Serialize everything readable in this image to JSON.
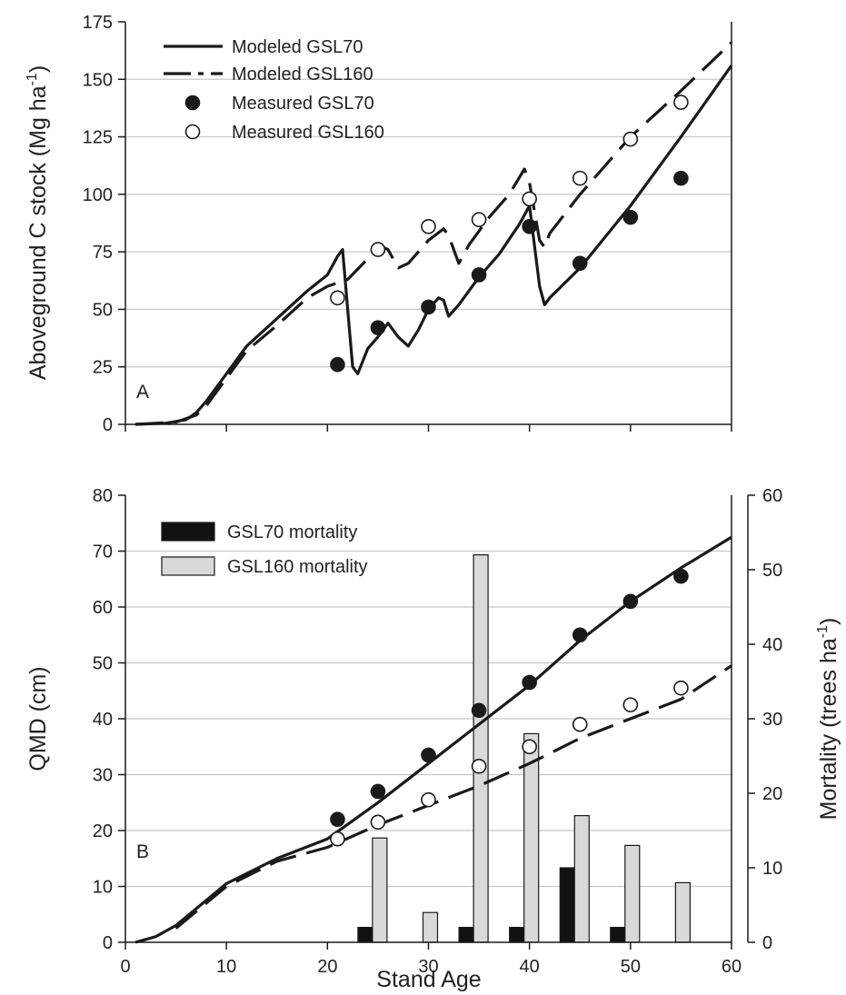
{
  "chart_data": [
    {
      "panel": "A",
      "type": "line",
      "ylabel_main": "Aboveground C stock (Mg ha",
      "ylabel_sup": "-1",
      "ylabel_close": ")",
      "xlim": [
        0,
        60
      ],
      "ylim": [
        0,
        175
      ],
      "x_ticks": [
        0,
        10,
        20,
        30,
        40,
        50,
        60
      ],
      "y_ticks": [
        0,
        25,
        50,
        75,
        100,
        125,
        150,
        175
      ],
      "grid": "horizontal",
      "legend_position": "top-left",
      "series": [
        {
          "name": "Modeled GSL70",
          "style": "solid",
          "points": [
            [
              1,
              0
            ],
            [
              4,
              0.5
            ],
            [
              6,
              2
            ],
            [
              7,
              5
            ],
            [
              8,
              10
            ],
            [
              10,
              22
            ],
            [
              12,
              34
            ],
            [
              15,
              46
            ],
            [
              18,
              58
            ],
            [
              20,
              65
            ],
            [
              21,
              73
            ],
            [
              21.5,
              76
            ],
            [
              22,
              50
            ],
            [
              22.5,
              25
            ],
            [
              23,
              22
            ],
            [
              24,
              33
            ],
            [
              25,
              38
            ],
            [
              26,
              44
            ],
            [
              27,
              38
            ],
            [
              28,
              34
            ],
            [
              29,
              41
            ],
            [
              30,
              50
            ],
            [
              31,
              55
            ],
            [
              31.5,
              54
            ],
            [
              32,
              47
            ],
            [
              33,
              52
            ],
            [
              35,
              64
            ],
            [
              37,
              74
            ],
            [
              39,
              87
            ],
            [
              40,
              95
            ],
            [
              41,
              60
            ],
            [
              41.5,
              52
            ],
            [
              42,
              55
            ],
            [
              45,
              68
            ],
            [
              50,
              95
            ],
            [
              55,
              125
            ],
            [
              60,
              156
            ]
          ]
        },
        {
          "name": "Modeled GSL160",
          "style": "dashed",
          "points": [
            [
              1,
              0
            ],
            [
              5,
              1
            ],
            [
              7,
              4
            ],
            [
              8,
              8
            ],
            [
              10,
              20
            ],
            [
              12,
              32
            ],
            [
              15,
              43
            ],
            [
              18,
              55
            ],
            [
              20,
              60
            ],
            [
              22,
              63
            ],
            [
              24,
              72
            ],
            [
              25.5,
              77
            ],
            [
              26,
              76
            ],
            [
              27,
              68
            ],
            [
              28,
              70
            ],
            [
              30,
              80
            ],
            [
              31.5,
              85
            ],
            [
              32,
              82
            ],
            [
              33,
              70
            ],
            [
              34,
              78
            ],
            [
              36,
              90
            ],
            [
              38,
              100
            ],
            [
              39.5,
              111
            ],
            [
              40,
              105
            ],
            [
              41,
              80
            ],
            [
              41.5,
              77
            ],
            [
              42,
              83
            ],
            [
              45,
              100
            ],
            [
              50,
              125
            ],
            [
              55,
              145
            ],
            [
              60,
              166
            ]
          ]
        },
        {
          "name": "Measured GSL70",
          "style": "filled-circle",
          "points": [
            [
              21,
              26
            ],
            [
              25,
              42
            ],
            [
              30,
              51
            ],
            [
              35,
              65
            ],
            [
              40,
              86
            ],
            [
              45,
              70
            ],
            [
              50,
              90
            ],
            [
              55,
              107
            ]
          ]
        },
        {
          "name": "Measured GSL160",
          "style": "open-circle",
          "points": [
            [
              21,
              55
            ],
            [
              25,
              76
            ],
            [
              30,
              86
            ],
            [
              35,
              89
            ],
            [
              40,
              98
            ],
            [
              45,
              107
            ],
            [
              50,
              124
            ],
            [
              55,
              140
            ]
          ]
        }
      ],
      "colors": {
        "line": "#1a1a1a",
        "grid": "#c8c8c8",
        "open_fill": "#ffffff"
      }
    },
    {
      "panel": "B",
      "type": "line+bar",
      "ylabel": "QMD (cm)",
      "y2label_main": "Mortality (trees ha",
      "y2label_sup": "-1",
      "y2label_close": ")",
      "xlabel": "Stand Age",
      "xlim": [
        0,
        60
      ],
      "ylim": [
        0,
        80
      ],
      "y2lim": [
        0,
        60
      ],
      "x_ticks": [
        0,
        10,
        20,
        30,
        40,
        50,
        60
      ],
      "y_ticks": [
        0,
        10,
        20,
        30,
        40,
        50,
        60,
        70,
        80
      ],
      "y2_ticks": [
        0,
        10,
        20,
        30,
        40,
        50,
        60
      ],
      "grid": "horizontal",
      "legend_position": "top-left",
      "bars": [
        {
          "name": "GSL70 mortality",
          "color": "#111111",
          "x": [
            25,
            35,
            40,
            45,
            50
          ],
          "values": [
            2,
            2,
            2,
            10,
            2
          ]
        },
        {
          "name": "GSL160 mortality",
          "color": "#d9d9d9",
          "x": [
            25,
            30,
            35,
            40,
            45,
            50,
            55
          ],
          "values": [
            14,
            4,
            52,
            28,
            17,
            13,
            8
          ]
        }
      ],
      "series": [
        {
          "style": "solid",
          "points": [
            [
              1,
              0
            ],
            [
              3,
              1
            ],
            [
              5,
              3
            ],
            [
              7,
              6
            ],
            [
              10,
              10.5
            ],
            [
              15,
              15
            ],
            [
              20,
              18.5
            ],
            [
              25,
              25
            ],
            [
              30,
              32
            ],
            [
              35,
              39
            ],
            [
              40,
              46
            ],
            [
              45,
              54
            ],
            [
              50,
              61
            ],
            [
              55,
              67
            ],
            [
              60,
              72.5
            ]
          ]
        },
        {
          "style": "dashed",
          "points": [
            [
              5,
              2.5
            ],
            [
              10,
              10
            ],
            [
              15,
              14.5
            ],
            [
              20,
              17
            ],
            [
              25,
              21
            ],
            [
              30,
              24.5
            ],
            [
              35,
              28
            ],
            [
              40,
              32
            ],
            [
              45,
              36.5
            ],
            [
              50,
              40
            ],
            [
              55,
              43.5
            ],
            [
              60,
              49.5
            ]
          ]
        },
        {
          "style": "filled-circle",
          "points": [
            [
              21,
              22
            ],
            [
              25,
              27
            ],
            [
              30,
              33.5
            ],
            [
              35,
              41.5
            ],
            [
              40,
              46.5
            ],
            [
              45,
              55
            ],
            [
              50,
              61
            ],
            [
              55,
              65.5
            ]
          ]
        },
        {
          "style": "open-circle",
          "points": [
            [
              21,
              18.5
            ],
            [
              25,
              21.5
            ],
            [
              30,
              25.5
            ],
            [
              35,
              31.5
            ],
            [
              40,
              35
            ],
            [
              45,
              39
            ],
            [
              50,
              42.5
            ],
            [
              55,
              45.5
            ]
          ]
        }
      ]
    }
  ]
}
